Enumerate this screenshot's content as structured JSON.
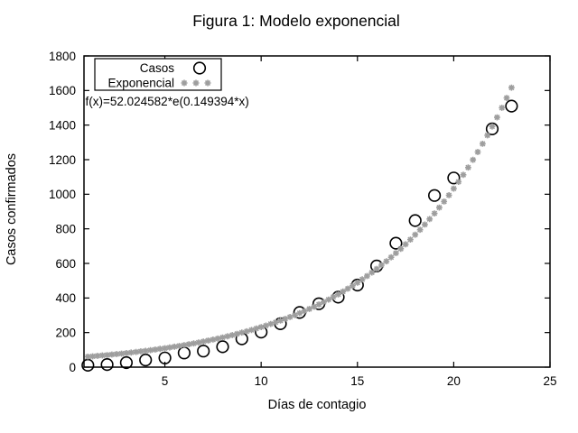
{
  "chart_data": {
    "type": "scatter",
    "title": "Figura 1: Modelo exponencial",
    "xlabel": "Días de contagio",
    "ylabel": "Casos confirmados",
    "xlim": [
      0.8,
      25
    ],
    "ylim": [
      0,
      1800
    ],
    "x_ticks": [
      5,
      10,
      15,
      20,
      25
    ],
    "y_ticks": [
      0,
      200,
      400,
      600,
      800,
      1000,
      1200,
      1400,
      1600,
      1800
    ],
    "grid": false,
    "annotation": "f(x)=52.024582*e(0.149394*x)",
    "colors": {
      "points": "#000000",
      "model": "#9e9e9e"
    },
    "legend": {
      "position": "top-left",
      "entries": [
        {
          "label": "Casos",
          "marker": "circle",
          "color": "#000000"
        },
        {
          "label": "Exponencial",
          "marker": "star",
          "color": "#9e9e9e"
        }
      ]
    },
    "series": [
      {
        "name": "Casos",
        "style": "points",
        "marker": "circle",
        "color": "#000000",
        "x": [
          1,
          2,
          3,
          4,
          5,
          6,
          7,
          8,
          9,
          10,
          11,
          12,
          13,
          14,
          15,
          16,
          17,
          18,
          19,
          20,
          22,
          23
        ],
        "y": [
          11,
          15,
          26,
          41,
          53,
          82,
          93,
          118,
          164,
          203,
          251,
          316,
          367,
          405,
          475,
          585,
          717,
          848,
          993,
          1094,
          1378,
          1510
        ]
      },
      {
        "name": "Exponencial",
        "style": "function-points",
        "marker": "star",
        "color": "#9e9e9e",
        "formula": "f(x)=52.024582*e(0.149394*x)",
        "a": 52.024582,
        "b": 0.149394,
        "x_start": 1,
        "x_end": 23,
        "x_step": 0.25
      }
    ]
  }
}
